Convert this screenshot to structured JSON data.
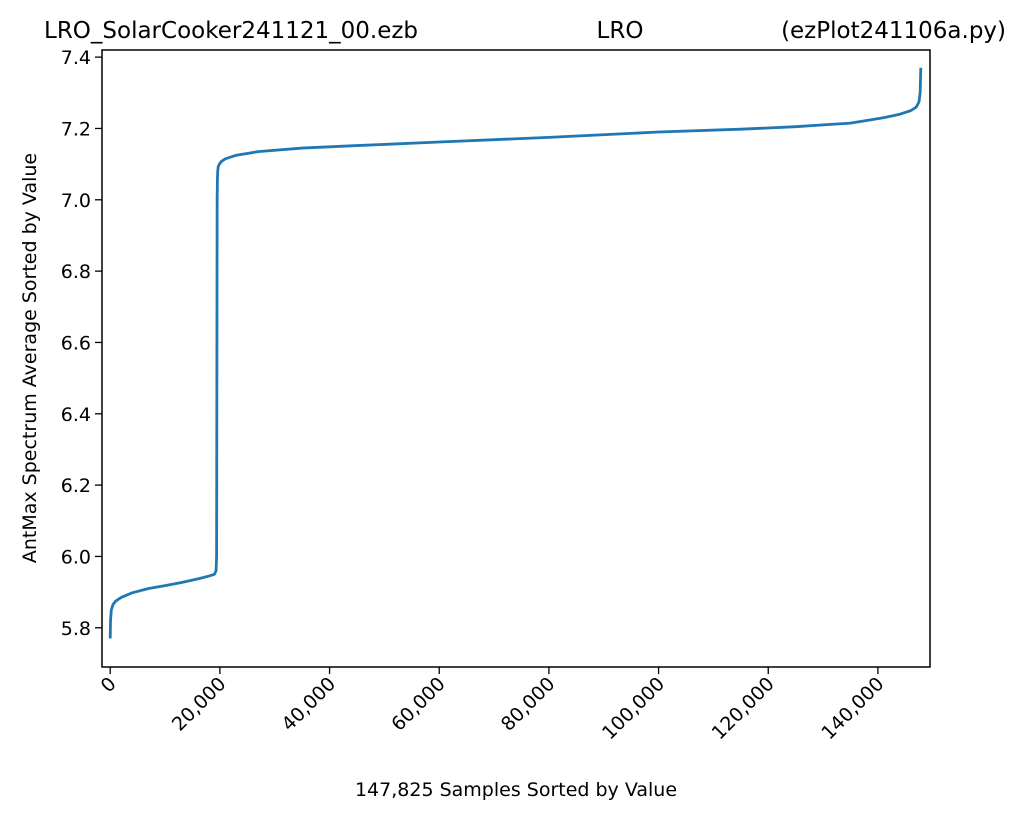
{
  "titles": {
    "left": "LRO_SolarCooker241121_00.ezb",
    "center": "LRO",
    "right": "(ezPlot241106a.py)"
  },
  "chart_data": {
    "type": "line",
    "xlabel": "147,825 Samples Sorted by Value",
    "ylabel": "AntMax Spectrum Average Sorted by Value",
    "xlim": [
      -1500,
      149500
    ],
    "ylim": [
      5.69,
      7.42
    ],
    "grid": false,
    "xticks": [
      {
        "value": 0,
        "label": "0"
      },
      {
        "value": 20000,
        "label": "20,000"
      },
      {
        "value": 40000,
        "label": "40,000"
      },
      {
        "value": 60000,
        "label": "60,000"
      },
      {
        "value": 80000,
        "label": "80,000"
      },
      {
        "value": 100000,
        "label": "100,000"
      },
      {
        "value": 120000,
        "label": "120,000"
      },
      {
        "value": 140000,
        "label": "140,000"
      }
    ],
    "yticks": [
      {
        "value": 5.8,
        "label": "5.8"
      },
      {
        "value": 6.0,
        "label": "6.0"
      },
      {
        "value": 6.2,
        "label": "6.2"
      },
      {
        "value": 6.4,
        "label": "6.4"
      },
      {
        "value": 6.6,
        "label": "6.6"
      },
      {
        "value": 6.8,
        "label": "6.8"
      },
      {
        "value": 7.0,
        "label": "7.0"
      },
      {
        "value": 7.2,
        "label": "7.2"
      },
      {
        "value": 7.4,
        "label": "7.4"
      }
    ],
    "series": [
      {
        "color": "#1f77b4",
        "x": [
          0,
          50,
          200,
          500,
          1000,
          2000,
          4000,
          7000,
          10000,
          13000,
          16000,
          18000,
          19000,
          19300,
          19400,
          19450,
          19500,
          19550,
          19600,
          19700,
          19900,
          20300,
          21000,
          23000,
          27000,
          35000,
          45000,
          60000,
          80000,
          100000,
          115000,
          125000,
          135000,
          141000,
          144000,
          146000,
          147000,
          147500,
          147700,
          147825
        ],
        "y": [
          5.77,
          5.82,
          5.85,
          5.865,
          5.875,
          5.885,
          5.898,
          5.91,
          5.918,
          5.927,
          5.937,
          5.945,
          5.95,
          5.96,
          6.0,
          6.5,
          7.0,
          7.06,
          7.08,
          7.093,
          7.1,
          7.108,
          7.115,
          7.125,
          7.135,
          7.145,
          7.152,
          7.162,
          7.175,
          7.19,
          7.198,
          7.205,
          7.215,
          7.23,
          7.24,
          7.25,
          7.26,
          7.275,
          7.3,
          7.37
        ]
      }
    ]
  }
}
